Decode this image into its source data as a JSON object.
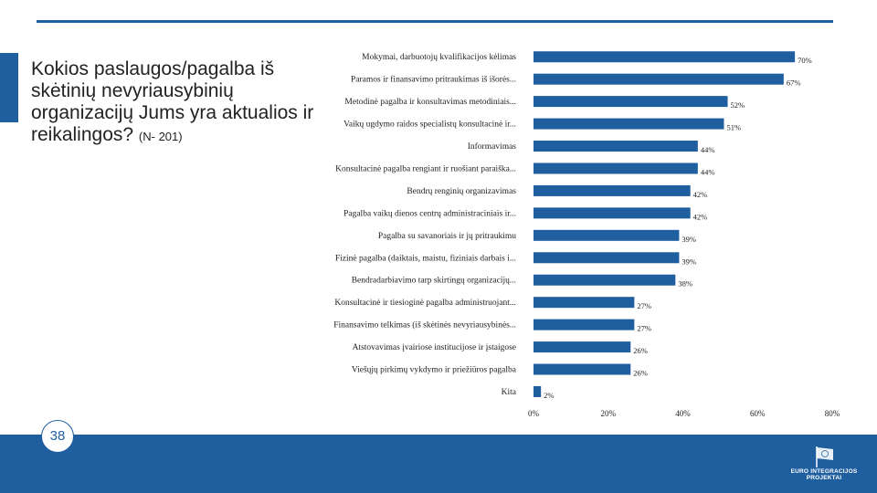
{
  "question": {
    "text": "Kokios paslaugos/pagalba iš skėtinių nevyriausybinių organizacijų Jums yra aktualios ir reikalingos?",
    "sample": "(N- 201)"
  },
  "page_number": "38",
  "logo": {
    "line1": "EURO",
    "line2": "INTEGRACIJOS",
    "line3": "PROJEKTAI"
  },
  "colors": {
    "bar": "#1f5fa0",
    "accent": "#1f5fa0"
  },
  "chart_data": {
    "type": "bar",
    "orientation": "horizontal",
    "categories": [
      "Mokymai, darbuotojų kvalifikacijos kėlimas",
      "Paramos ir finansavimo pritraukimas iš išorės...",
      "Metodinė pagalba ir konsultavimas metodiniais...",
      "Vaikų ugdymo raidos specialistų konsultacinė ir...",
      "Informavimas",
      "Konsultacinė pagalba rengiant ir ruošiant paraiška...",
      "Bendrų renginių organizavimas",
      "Pagalba vaikų dienos centrų administraciniais ir...",
      "Pagalba su savanoriais ir jų pritraukimu",
      "Fizinė pagalba (daiktais, maistu, fiziniais darbais i...",
      "Bendradarbiavimo tarp skirtingų organizacijų...",
      "Konsultacinė ir tiesioginė pagalba administruojant...",
      "Finansavimo telkimas (iš skėtinės nevyriausybinės...",
      "Atstovavimas įvairiose institucijose ir įstaigose",
      "Viešųjų pirkimų vykdymo ir priežiūros pagalba",
      "Kita"
    ],
    "values": [
      70,
      67,
      52,
      51,
      44,
      44,
      42,
      42,
      39,
      39,
      38,
      27,
      27,
      26,
      26,
      2
    ],
    "value_labels": [
      "70%",
      "67%",
      "52%",
      "51%",
      "44%",
      "44%",
      "42%",
      "42%",
      "39%",
      "39%",
      "38%",
      "27%",
      "27%",
      "26%",
      "26%",
      "2%"
    ],
    "xlim": [
      0,
      80
    ],
    "xticks": [
      0,
      20,
      40,
      60,
      80
    ],
    "xtick_labels": [
      "0%",
      "20%",
      "40%",
      "60%",
      "80%"
    ],
    "title": "",
    "xlabel": "",
    "ylabel": ""
  }
}
